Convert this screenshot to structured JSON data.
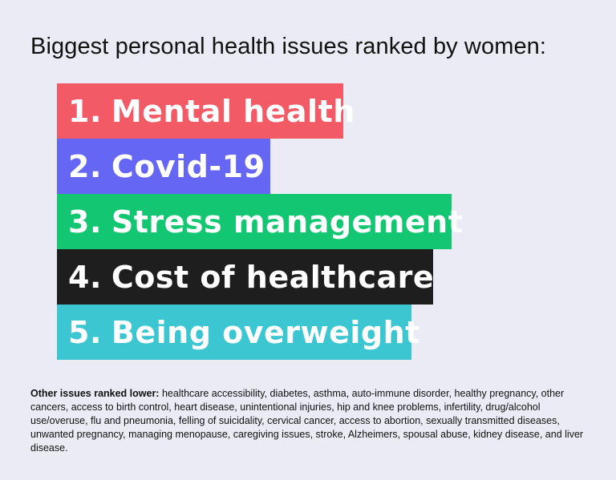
{
  "title": "Biggest personal health issues ranked by women:",
  "ranks": [
    {
      "num": "1.",
      "label": "Mental health",
      "color": "#f25a66"
    },
    {
      "num": "2.",
      "label": "Covid-19",
      "color": "#6666f5"
    },
    {
      "num": "3.",
      "label": "Stress management",
      "color": "#13c672"
    },
    {
      "num": "4.",
      "label": "Cost of healthcare",
      "color": "#1e1e1e"
    },
    {
      "num": "5.",
      "label": "Being overweight",
      "color": "#3cc6d2"
    }
  ],
  "note": {
    "heading": "Other issues ranked lower:",
    "text": " healthcare accessibility, diabetes, asthma, auto-immune disorder, healthy pregnancy, other cancers, access to birth control, heart disease, unintentional injuries, hip and knee problems, infertility, drug/alcohol use/overuse, flu and pneumonia, felling of suicidality, cervical cancer, access to abortion, sexually transmitted diseases, unwanted pregnancy, managing menopause, caregiving issues, stroke, Alzheimers, spousal abuse, kidney disease, and liver disease."
  },
  "background": "#ebebf5"
}
